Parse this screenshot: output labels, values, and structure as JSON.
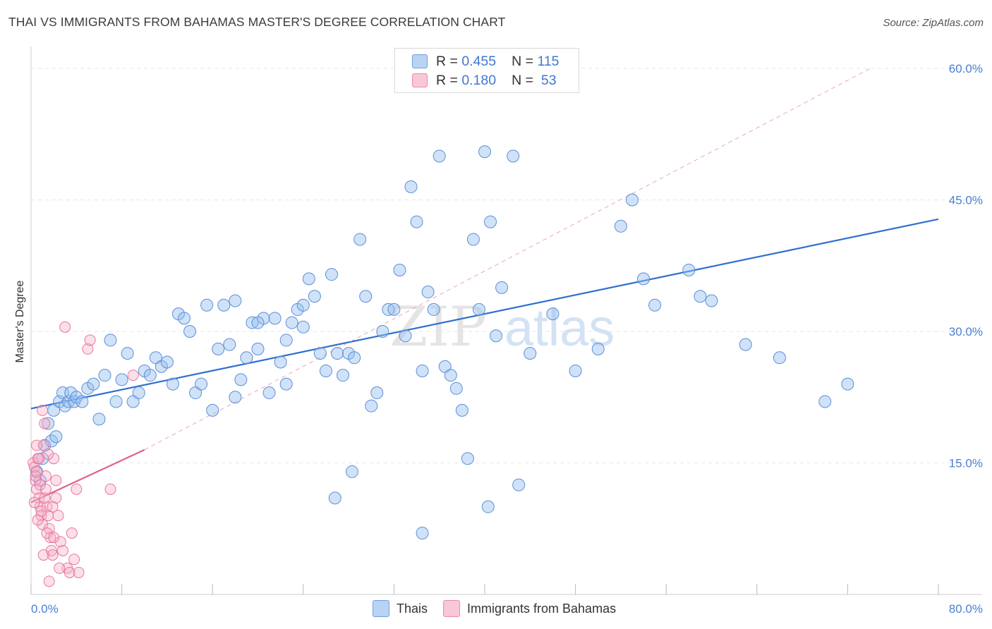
{
  "header": {
    "title": "THAI VS IMMIGRANTS FROM BAHAMAS MASTER'S DEGREE CORRELATION CHART",
    "source": "Source: ZipAtlas.com"
  },
  "legend": {
    "rows": [
      {
        "r_label": "R = ",
        "r_value": "0.455",
        "n_label": "N = ",
        "n_value": "115",
        "color": "#a9c8f0",
        "stroke": "#6f9fe0"
      },
      {
        "r_label": "R = ",
        "r_value": "0.180",
        "n_label": "N = ",
        "n_value": " 53",
        "color": "#f8bfd0",
        "stroke": "#ee88a6"
      }
    ]
  },
  "bottom_legend": [
    {
      "label": "Thais",
      "color": "#b9d3f3",
      "stroke": "#6f9fe0"
    },
    {
      "label": "Immigrants from Bahamas",
      "color": "#f9c8d7",
      "stroke": "#ee88a6"
    }
  ],
  "watermark": {
    "part1": "ZIP",
    "part2": "atlas"
  },
  "chart_data": {
    "type": "scatter",
    "title": "THAI VS IMMIGRANTS FROM BAHAMAS MASTER'S DEGREE CORRELATION CHART",
    "xlabel": "",
    "ylabel": "Master's Degree",
    "xlim": [
      0,
      80
    ],
    "ylim": [
      0,
      60
    ],
    "x_tick_labels": [
      "0.0%",
      "80.0%"
    ],
    "y_ticks": [
      15,
      30,
      45,
      60
    ],
    "y_tick_labels": [
      "15.0%",
      "30.0%",
      "45.0%",
      "60.0%"
    ],
    "grid": true,
    "legend_position": "top-center",
    "series": [
      {
        "name": "Thais",
        "color": "#5b8fd9",
        "fill": "rgba(150,190,238,0.45)",
        "trend": {
          "x": [
            0,
            80
          ],
          "y": [
            21.2,
            42.8
          ],
          "color": "#2f6fd0"
        },
        "points": [
          [
            0.5,
            14
          ],
          [
            0.8,
            13
          ],
          [
            1.0,
            15.5
          ],
          [
            1.2,
            17
          ],
          [
            1.5,
            19.5
          ],
          [
            1.8,
            17.5
          ],
          [
            2.0,
            21
          ],
          [
            2.2,
            18
          ],
          [
            2.5,
            22
          ],
          [
            2.8,
            23
          ],
          [
            3.0,
            21.5
          ],
          [
            3.3,
            22
          ],
          [
            3.5,
            23
          ],
          [
            3.8,
            22
          ],
          [
            4.0,
            22.5
          ],
          [
            4.5,
            22
          ],
          [
            5.0,
            23.5
          ],
          [
            5.5,
            24
          ],
          [
            6.0,
            20
          ],
          [
            6.5,
            25
          ],
          [
            7.0,
            29
          ],
          [
            7.5,
            22
          ],
          [
            8.0,
            24.5
          ],
          [
            8.5,
            27.5
          ],
          [
            9.0,
            22
          ],
          [
            9.5,
            23
          ],
          [
            10.0,
            25.5
          ],
          [
            10.5,
            25
          ],
          [
            11.0,
            27
          ],
          [
            11.5,
            26
          ],
          [
            12.0,
            26.5
          ],
          [
            12.5,
            24
          ],
          [
            13.0,
            32
          ],
          [
            13.5,
            31.5
          ],
          [
            14.0,
            30
          ],
          [
            14.5,
            23
          ],
          [
            15.0,
            24
          ],
          [
            15.5,
            33
          ],
          [
            16.0,
            21
          ],
          [
            16.5,
            28
          ],
          [
            17.0,
            33
          ],
          [
            17.5,
            28.5
          ],
          [
            18.0,
            22.5
          ],
          [
            18.5,
            24.5
          ],
          [
            19.0,
            27
          ],
          [
            19.5,
            31
          ],
          [
            20.0,
            28
          ],
          [
            20.5,
            31.5
          ],
          [
            21.0,
            23
          ],
          [
            21.5,
            31.5
          ],
          [
            22.0,
            26.5
          ],
          [
            22.5,
            24
          ],
          [
            23.0,
            31
          ],
          [
            23.5,
            32.5
          ],
          [
            24.0,
            30.5
          ],
          [
            24.5,
            36
          ],
          [
            25.0,
            34
          ],
          [
            25.5,
            27.5
          ],
          [
            26.0,
            25.5
          ],
          [
            26.5,
            36.5
          ],
          [
            27.0,
            27.5
          ],
          [
            27.5,
            25
          ],
          [
            28.0,
            27.5
          ],
          [
            28.5,
            27
          ],
          [
            29.0,
            40.5
          ],
          [
            29.5,
            34
          ],
          [
            30.0,
            21.5
          ],
          [
            30.5,
            23
          ],
          [
            31.0,
            30
          ],
          [
            31.5,
            32.5
          ],
          [
            32.0,
            32.5
          ],
          [
            32.5,
            37
          ],
          [
            33.0,
            29.5
          ],
          [
            33.5,
            46.5
          ],
          [
            34.0,
            42.5
          ],
          [
            34.5,
            25.5
          ],
          [
            35.0,
            34.5
          ],
          [
            35.5,
            32.5
          ],
          [
            36.0,
            50
          ],
          [
            36.5,
            26
          ],
          [
            37.0,
            25
          ],
          [
            37.5,
            23.5
          ],
          [
            38.0,
            21
          ],
          [
            38.5,
            15.5
          ],
          [
            39.0,
            40.5
          ],
          [
            39.5,
            32.5
          ],
          [
            40.0,
            50.5
          ],
          [
            40.5,
            42.5
          ],
          [
            41.0,
            29.5
          ],
          [
            41.5,
            35
          ],
          [
            42.5,
            50
          ],
          [
            44.0,
            27.5
          ],
          [
            46.0,
            32
          ],
          [
            48.0,
            25.5
          ],
          [
            50.0,
            28
          ],
          [
            52.0,
            42
          ],
          [
            53.0,
            45
          ],
          [
            54.0,
            36
          ],
          [
            55.0,
            33
          ],
          [
            58.0,
            37
          ],
          [
            59.0,
            34
          ],
          [
            60.0,
            33.5
          ],
          [
            63.0,
            28.5
          ],
          [
            66.0,
            27
          ],
          [
            70.0,
            22
          ],
          [
            72.0,
            24
          ],
          [
            28.3,
            14
          ],
          [
            34.5,
            7
          ],
          [
            40.3,
            10
          ],
          [
            26.8,
            11
          ],
          [
            18.0,
            33.5
          ],
          [
            20.0,
            31
          ],
          [
            22.5,
            29
          ],
          [
            24.0,
            33
          ],
          [
            43.0,
            12.5
          ]
        ]
      },
      {
        "name": "Immigrants from Bahamas",
        "color": "#e8799c",
        "fill": "rgba(245,175,200,0.40)",
        "trend": {
          "x": [
            0,
            10
          ],
          "y": [
            10.5,
            16.5
          ],
          "color": "#e0608a",
          "extended_to": [
            74,
            60
          ]
        },
        "points": [
          [
            0.2,
            15
          ],
          [
            0.3,
            14.5
          ],
          [
            0.4,
            13
          ],
          [
            0.5,
            12
          ],
          [
            0.6,
            15.5
          ],
          [
            0.7,
            11
          ],
          [
            0.8,
            10
          ],
          [
            0.9,
            9
          ],
          [
            1.0,
            8
          ],
          [
            1.1,
            17
          ],
          [
            1.2,
            19.5
          ],
          [
            1.3,
            13.5
          ],
          [
            1.4,
            10
          ],
          [
            1.5,
            9
          ],
          [
            1.6,
            7.5
          ],
          [
            1.7,
            6.5
          ],
          [
            1.8,
            5
          ],
          [
            1.9,
            4.5
          ],
          [
            2.0,
            15.5
          ],
          [
            2.2,
            11
          ],
          [
            2.4,
            9
          ],
          [
            2.6,
            6
          ],
          [
            2.8,
            5
          ],
          [
            3.0,
            30.5
          ],
          [
            3.2,
            3
          ],
          [
            3.4,
            2.5
          ],
          [
            3.6,
            7
          ],
          [
            3.8,
            4
          ],
          [
            4.0,
            12
          ],
          [
            4.2,
            2.5
          ],
          [
            5.0,
            28
          ],
          [
            5.2,
            29
          ],
          [
            7.0,
            12
          ],
          [
            9.0,
            25
          ],
          [
            1.0,
            21
          ],
          [
            1.5,
            16
          ],
          [
            0.5,
            14
          ],
          [
            0.8,
            12.5
          ],
          [
            1.2,
            11
          ],
          [
            0.3,
            10.5
          ],
          [
            0.6,
            8.5
          ],
          [
            1.4,
            7
          ],
          [
            2.0,
            6.5
          ],
          [
            1.1,
            4.5
          ],
          [
            2.5,
            3
          ],
          [
            1.6,
            1.5
          ],
          [
            0.4,
            13.5
          ],
          [
            0.9,
            9.5
          ],
          [
            1.3,
            12
          ],
          [
            0.7,
            15.5
          ],
          [
            2.2,
            13
          ],
          [
            0.5,
            17
          ],
          [
            1.9,
            10
          ]
        ]
      }
    ]
  }
}
